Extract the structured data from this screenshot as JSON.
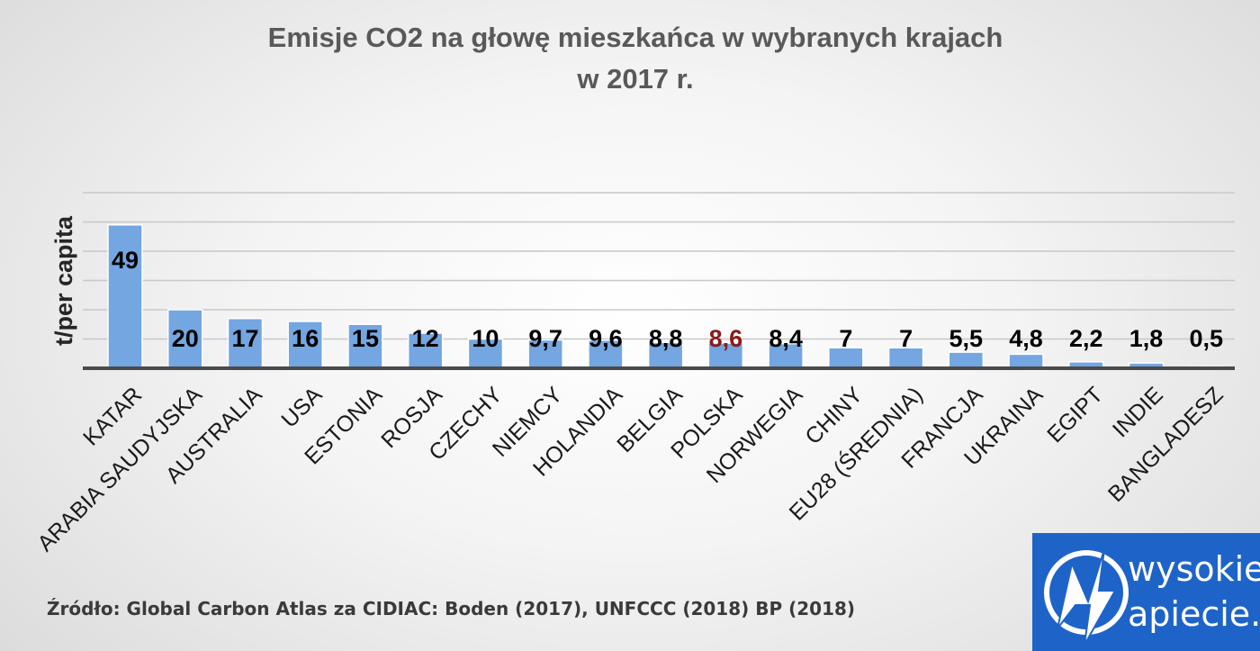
{
  "chart_data": {
    "type": "bar",
    "title_lines": [
      "Emisje CO2 na głowę mieszkańca w wybranych krajach",
      "w 2017 r."
    ],
    "ylabel": "t/per capita",
    "xlabel": "",
    "ylim": [
      0,
      60
    ],
    "grid": true,
    "categories": [
      "KATAR",
      "ARABIA SAUDYJSKA",
      "AUSTRALIA",
      "USA",
      "ESTONIA",
      "ROSJA",
      "CZECHY",
      "NIEMCY",
      "HOLANDIA",
      "BELGIA",
      "POLSKA",
      "NORWEGIA",
      "CHINY",
      "EU28 (ŚREDNIA)",
      "FRANCJA",
      "UKRAINA",
      "EGIPT",
      "INDIE",
      "BANGLADESZ"
    ],
    "values": [
      49,
      20,
      17,
      16,
      15,
      12,
      10,
      9.7,
      9.6,
      8.8,
      8.6,
      8.4,
      7,
      7,
      5.5,
      4.8,
      2.2,
      1.8,
      0.5
    ],
    "value_labels": [
      "49",
      "20",
      "17",
      "16",
      "15",
      "12",
      "10",
      "9,7",
      "9,6",
      "8,8",
      "8,6",
      "8,4",
      "7",
      "7",
      "5,5",
      "4,8",
      "2,2",
      "1,8",
      "0,5"
    ],
    "highlight_category": "POLSKA",
    "bar_color": "#74a6e1",
    "highlight_label_color": "#8b1a1a"
  },
  "source": "Źródło: Global Carbon Atlas za CIDIAC: Boden (2017), UNFCCC (2018) BP (2018)",
  "logo": {
    "line1": "wysokie",
    "line2": "apiecie.pl"
  }
}
